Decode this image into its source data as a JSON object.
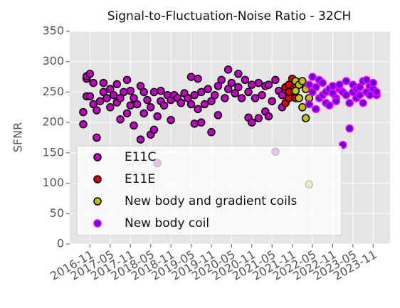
{
  "chart_data": {
    "type": "scatter",
    "title": "Signal-to-Fluctuation-Noise Ratio - 32CH",
    "ylabel": "SFNR",
    "xlim": [
      "2016-05",
      "2024-04"
    ],
    "xticks": [
      "2016-11",
      "2017-05",
      "2017-11",
      "2018-05",
      "2018-11",
      "2019-05",
      "2019-11",
      "2020-05",
      "2020-11",
      "2021-05",
      "2021-11",
      "2022-05",
      "2022-11",
      "2023-05",
      "2023-11"
    ],
    "ylim": [
      0,
      350
    ],
    "yticks": [
      0,
      50,
      100,
      150,
      200,
      250,
      300,
      350
    ],
    "grid": true,
    "legend": "lower left",
    "series": [
      {
        "name": "E11C",
        "color": "#c000c0",
        "edgecolor": "#000000",
        "x": [
          "2016-09",
          "2016-09",
          "2016-10",
          "2016-10",
          "2016-10",
          "2016-11",
          "2016-11",
          "2016-12",
          "2016-12",
          "2017-01",
          "2017-01",
          "2017-02",
          "2017-03",
          "2017-03",
          "2017-04",
          "2017-05",
          "2017-05",
          "2017-06",
          "2017-07",
          "2017-07",
          "2017-08",
          "2017-08",
          "2017-09",
          "2017-10",
          "2017-10",
          "2017-11",
          "2017-11",
          "2017-12",
          "2017-12",
          "2018-01",
          "2018-02",
          "2018-02",
          "2018-03",
          "2018-03",
          "2018-04",
          "2018-05",
          "2018-05",
          "2018-06",
          "2018-06",
          "2018-07",
          "2018-07",
          "2018-08",
          "2018-08",
          "2018-09",
          "2018-10",
          "2018-11",
          "2018-11",
          "2018-12",
          "2019-01",
          "2019-02",
          "2019-03",
          "2019-04",
          "2019-05",
          "2019-05",
          "2019-06",
          "2019-06",
          "2019-07",
          "2019-07",
          "2019-08",
          "2019-08",
          "2019-09",
          "2019-10",
          "2019-11",
          "2019-11",
          "2019-12",
          "2020-01",
          "2020-01",
          "2020-02",
          "2020-03",
          "2020-04",
          "2020-04",
          "2020-05",
          "2020-06",
          "2020-07",
          "2020-07",
          "2020-08",
          "2020-09",
          "2020-10",
          "2020-10",
          "2020-11",
          "2020-11",
          "2020-12",
          "2021-01",
          "2021-01",
          "2021-02",
          "2021-03",
          "2021-03",
          "2021-04",
          "2021-04",
          "2021-05",
          "2021-06",
          "2021-06",
          "2021-07",
          "2021-08",
          "2021-08",
          "2021-09",
          "2021-10",
          "2021-11"
        ],
        "values": [
          197,
          217,
          243,
          272,
          276,
          280,
          243,
          230,
          265,
          220,
          175,
          235,
          250,
          265,
          240,
          225,
          255,
          245,
          233,
          263,
          205,
          240,
          250,
          215,
          270,
          228,
          252,
          195,
          240,
          230,
          260,
          172,
          215,
          250,
          237,
          180,
          225,
          188,
          250,
          133,
          210,
          235,
          252,
          228,
          245,
          204,
          237,
          245,
          240,
          232,
          248,
          240,
          275,
          230,
          198,
          245,
          272,
          222,
          200,
          250,
          230,
          255,
          184,
          235,
          245,
          260,
          212,
          270,
          240,
          287,
          255,
          265,
          248,
          280,
          258,
          240,
          270,
          208,
          250,
          200,
          262,
          240,
          207,
          265,
          245,
          218,
          260,
          262,
          210,
          235,
          270,
          152,
          252,
          225,
          245,
          258,
          240,
          248
        ]
      },
      {
        "name": "E11E",
        "color": "#e00000",
        "edgecolor": "#000000",
        "x": [
          "2021-09",
          "2021-09",
          "2021-10",
          "2021-10",
          "2021-11",
          "2021-11",
          "2021-12",
          "2021-12",
          "2021-10"
        ],
        "values": [
          232,
          258,
          262,
          240,
          272,
          250,
          262,
          240,
          250
        ]
      },
      {
        "name": "New body and gradient coils",
        "color": "#c0c000",
        "edgecolor": "#000000",
        "x": [
          "2021-12",
          "2021-12",
          "2022-01",
          "2022-01",
          "2022-02",
          "2022-02",
          "2022-03",
          "2022-03",
          "2022-04",
          "2022-04"
        ],
        "values": [
          268,
          252,
          240,
          262,
          225,
          268,
          207,
          255,
          98,
          240
        ]
      },
      {
        "name": "New body coil",
        "color": "#6a00e0",
        "edgecolor": "#ff00ff",
        "x": [
          "2022-04",
          "2022-04",
          "2022-05",
          "2022-05",
          "2022-06",
          "2022-06",
          "2022-07",
          "2022-07",
          "2022-08",
          "2022-08",
          "2022-09",
          "2022-09",
          "2022-10",
          "2022-10",
          "2022-11",
          "2022-11",
          "2022-12",
          "2022-12",
          "2023-01",
          "2023-01",
          "2023-02",
          "2023-02",
          "2023-03",
          "2023-03",
          "2023-04",
          "2023-04",
          "2023-05",
          "2023-05",
          "2023-06",
          "2023-06",
          "2023-07",
          "2023-07",
          "2023-08",
          "2023-08",
          "2023-09",
          "2023-09",
          "2023-10",
          "2023-10",
          "2023-11",
          "2023-11",
          "2023-12",
          "2023-12"
        ],
        "values": [
          230,
          262,
          275,
          250,
          222,
          258,
          270,
          240,
          245,
          265,
          232,
          250,
          228,
          255,
          248,
          260,
          240,
          235,
          255,
          262,
          250,
          163,
          245,
          268,
          232,
          190,
          250,
          262,
          240,
          255,
          258,
          245,
          268,
          232,
          250,
          270,
          245,
          260,
          255,
          265,
          245,
          250
        ]
      }
    ]
  }
}
